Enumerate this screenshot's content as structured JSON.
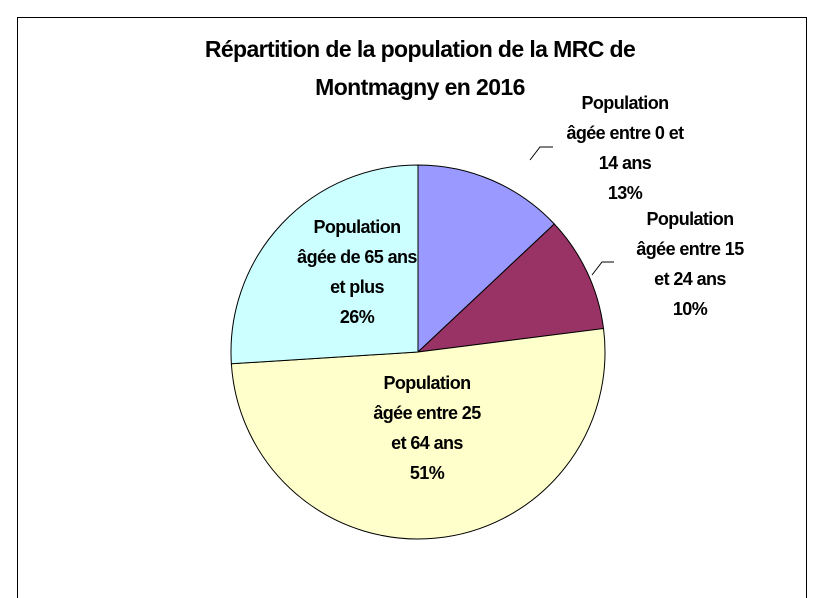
{
  "chart_data": {
    "type": "pie",
    "title": "Répartition de la population de la MRC de Montmagny en 2016",
    "categories": [
      "Population âgée entre 0 et 14 ans",
      "Population âgée entre 15 et 24 ans",
      "Population âgée entre 25 et 64 ans",
      "Population âgée de 65 ans et plus"
    ],
    "values": [
      13,
      10,
      51,
      26
    ],
    "value_labels": [
      "13%",
      "10%",
      "51%",
      "26%"
    ],
    "colors": [
      "#9999ff",
      "#993366",
      "#ffffcc",
      "#ccffff"
    ]
  }
}
